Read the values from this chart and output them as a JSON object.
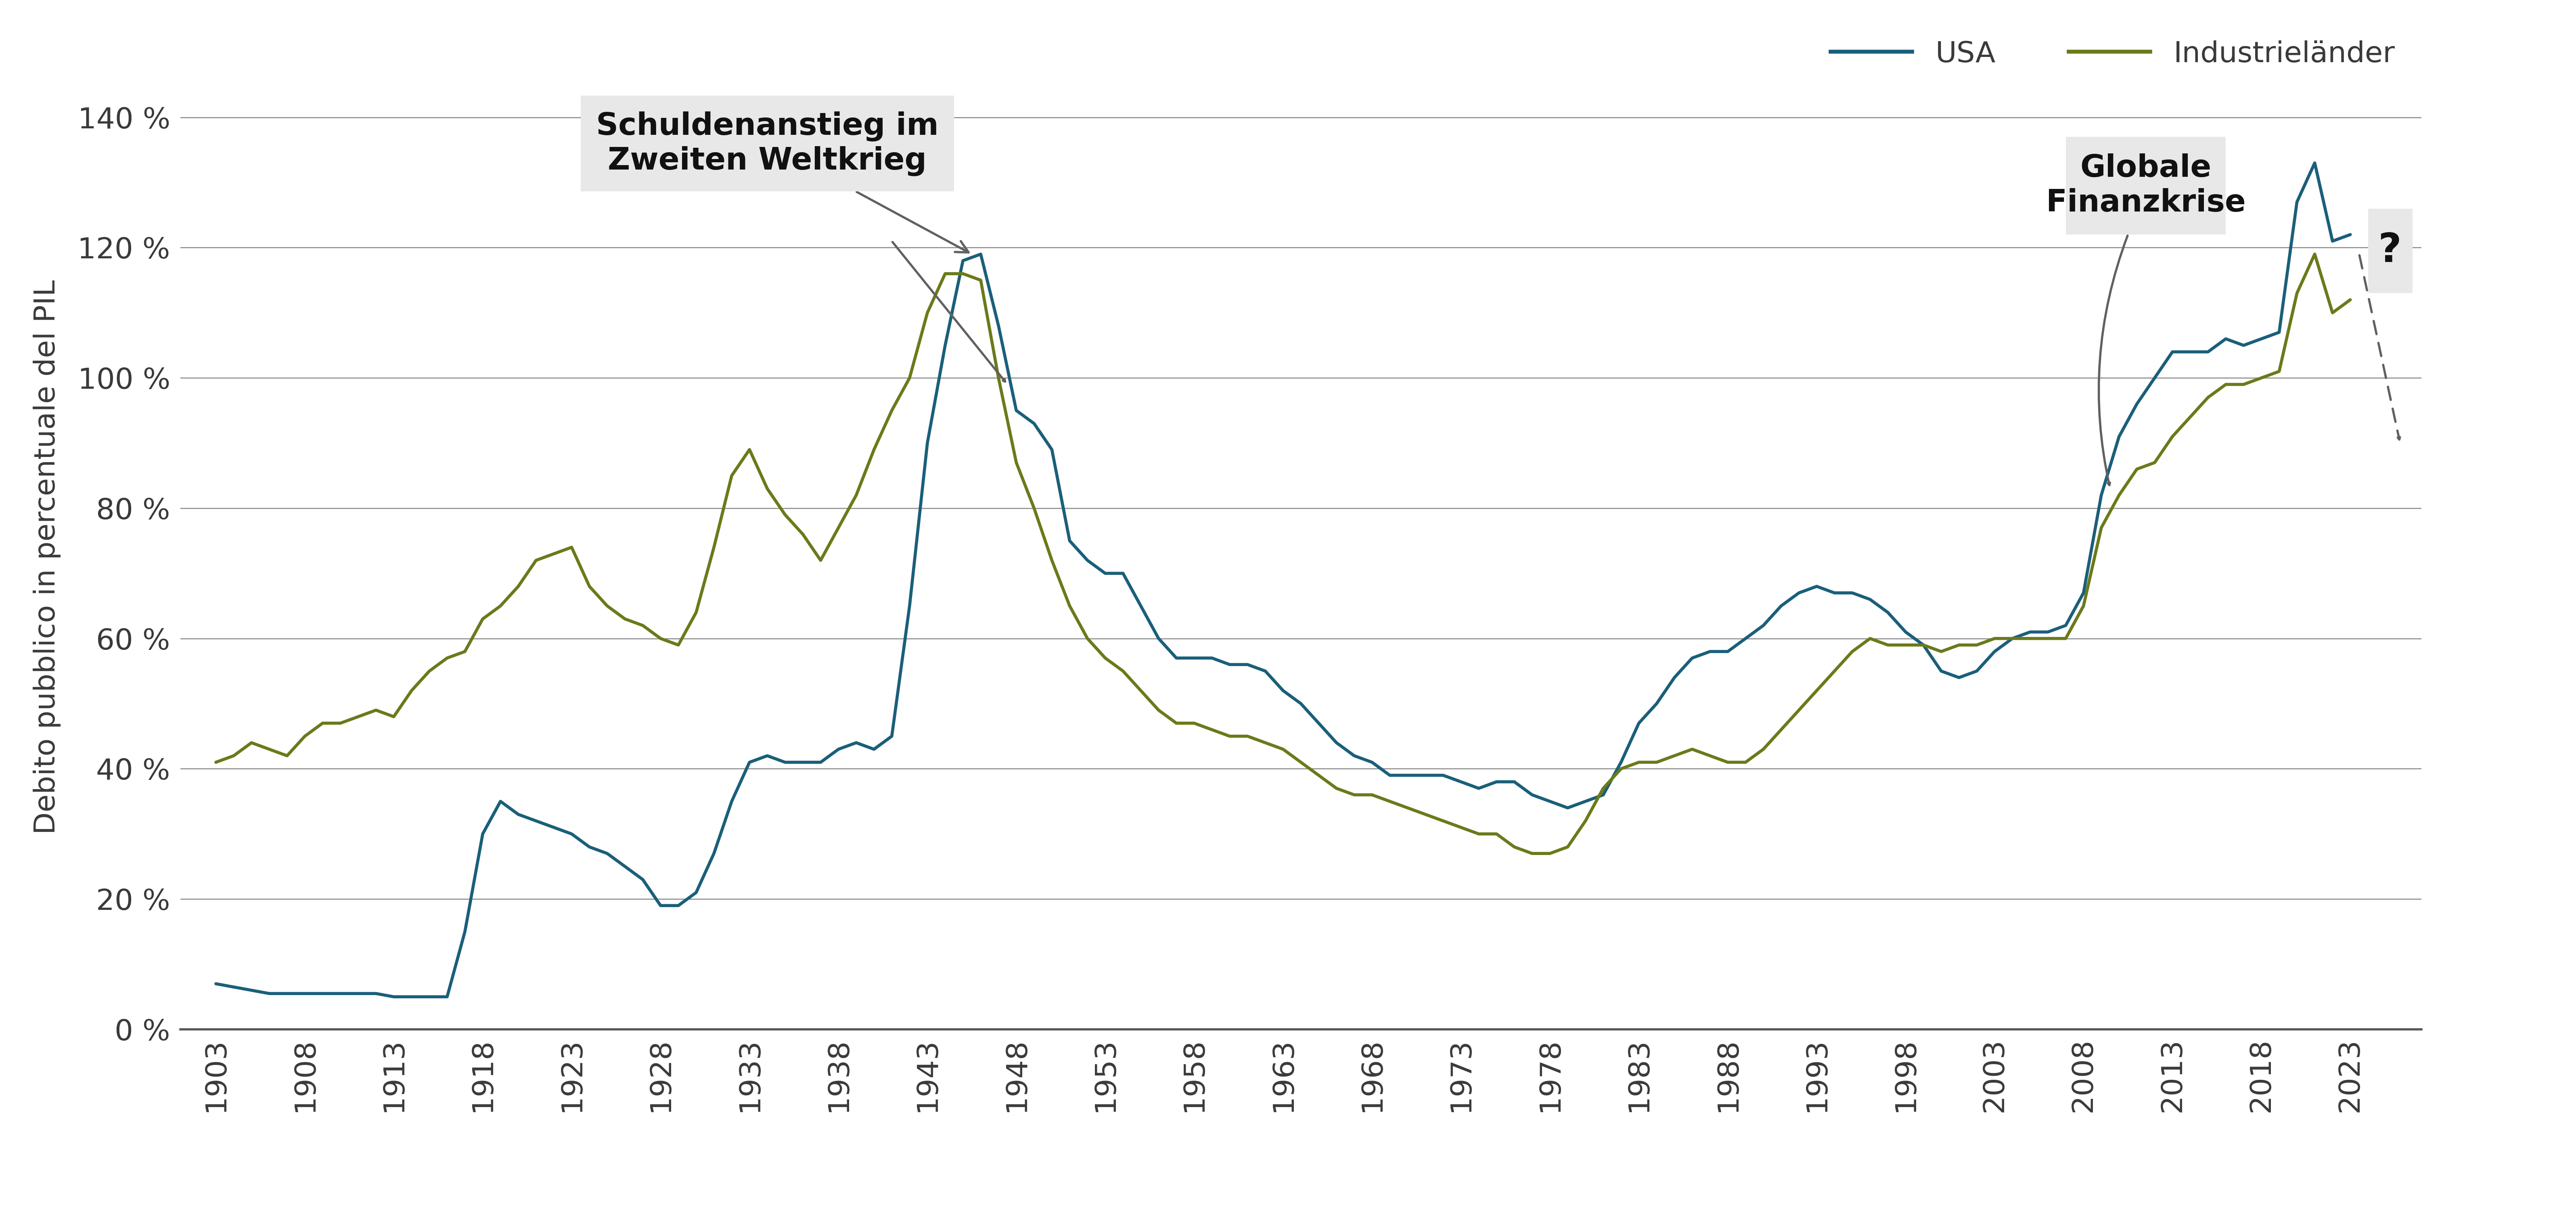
{
  "usa_data": {
    "1903": 7,
    "1904": 6.5,
    "1905": 6,
    "1906": 5.5,
    "1907": 5.5,
    "1908": 5.5,
    "1909": 5.5,
    "1910": 5.5,
    "1911": 5.5,
    "1912": 5.5,
    "1913": 5,
    "1914": 5,
    "1915": 5,
    "1916": 5,
    "1917": 15,
    "1918": 30,
    "1919": 35,
    "1920": 33,
    "1921": 32,
    "1922": 31,
    "1923": 30,
    "1924": 28,
    "1925": 27,
    "1926": 25,
    "1927": 23,
    "1928": 19,
    "1929": 19,
    "1930": 21,
    "1931": 27,
    "1932": 35,
    "1933": 41,
    "1934": 42,
    "1935": 41,
    "1936": 41,
    "1937": 41,
    "1938": 43,
    "1939": 44,
    "1940": 43,
    "1941": 45,
    "1942": 65,
    "1943": 90,
    "1944": 105,
    "1945": 118,
    "1946": 119,
    "1947": 108,
    "1948": 95,
    "1949": 93,
    "1950": 89,
    "1951": 75,
    "1952": 72,
    "1953": 70,
    "1954": 70,
    "1955": 65,
    "1956": 60,
    "1957": 57,
    "1958": 57,
    "1959": 57,
    "1960": 56,
    "1961": 56,
    "1962": 55,
    "1963": 52,
    "1964": 50,
    "1965": 47,
    "1966": 44,
    "1967": 42,
    "1968": 41,
    "1969": 39,
    "1970": 39,
    "1971": 39,
    "1972": 39,
    "1973": 38,
    "1974": 37,
    "1975": 38,
    "1976": 38,
    "1977": 36,
    "1978": 35,
    "1979": 34,
    "1980": 35,
    "1981": 36,
    "1982": 41,
    "1983": 47,
    "1984": 50,
    "1985": 54,
    "1986": 57,
    "1987": 58,
    "1988": 58,
    "1989": 60,
    "1990": 62,
    "1991": 65,
    "1992": 67,
    "1993": 68,
    "1994": 67,
    "1995": 67,
    "1996": 66,
    "1997": 64,
    "1998": 61,
    "1999": 59,
    "2000": 55,
    "2001": 54,
    "2002": 55,
    "2003": 58,
    "2004": 60,
    "2005": 61,
    "2006": 61,
    "2007": 62,
    "2008": 67,
    "2009": 82,
    "2010": 91,
    "2011": 96,
    "2012": 100,
    "2013": 104,
    "2014": 104,
    "2015": 104,
    "2016": 106,
    "2017": 105,
    "2018": 106,
    "2019": 107,
    "2020": 127,
    "2021": 133,
    "2022": 121,
    "2023": 122
  },
  "ind_data": {
    "1903": 41,
    "1904": 42,
    "1905": 44,
    "1906": 43,
    "1907": 42,
    "1908": 45,
    "1909": 47,
    "1910": 47,
    "1911": 48,
    "1912": 49,
    "1913": 48,
    "1914": 52,
    "1915": 55,
    "1916": 57,
    "1917": 58,
    "1918": 63,
    "1919": 65,
    "1920": 68,
    "1921": 72,
    "1922": 73,
    "1923": 74,
    "1924": 68,
    "1925": 65,
    "1926": 63,
    "1927": 62,
    "1928": 60,
    "1929": 59,
    "1930": 64,
    "1931": 74,
    "1932": 85,
    "1933": 89,
    "1934": 83,
    "1935": 79,
    "1936": 76,
    "1937": 72,
    "1938": 77,
    "1939": 82,
    "1940": 89,
    "1941": 95,
    "1942": 100,
    "1943": 110,
    "1944": 116,
    "1945": 116,
    "1946": 115,
    "1947": 100,
    "1948": 87,
    "1949": 80,
    "1950": 72,
    "1951": 65,
    "1952": 60,
    "1953": 57,
    "1954": 55,
    "1955": 52,
    "1956": 49,
    "1957": 47,
    "1958": 47,
    "1959": 46,
    "1960": 45,
    "1961": 45,
    "1962": 44,
    "1963": 43,
    "1964": 41,
    "1965": 39,
    "1966": 37,
    "1967": 36,
    "1968": 36,
    "1969": 35,
    "1970": 34,
    "1971": 33,
    "1972": 32,
    "1973": 31,
    "1974": 30,
    "1975": 30,
    "1976": 28,
    "1977": 27,
    "1978": 27,
    "1979": 28,
    "1980": 32,
    "1981": 37,
    "1982": 40,
    "1983": 41,
    "1984": 41,
    "1985": 42,
    "1986": 43,
    "1987": 42,
    "1988": 41,
    "1989": 41,
    "1990": 43,
    "1991": 46,
    "1992": 49,
    "1993": 52,
    "1994": 55,
    "1995": 58,
    "1996": 60,
    "1997": 59,
    "1998": 59,
    "1999": 59,
    "2000": 58,
    "2001": 59,
    "2002": 59,
    "2003": 60,
    "2004": 60,
    "2005": 60,
    "2006": 60,
    "2007": 60,
    "2008": 65,
    "2009": 77,
    "2010": 82,
    "2011": 86,
    "2012": 87,
    "2013": 91,
    "2014": 94,
    "2015": 97,
    "2016": 99,
    "2017": 99,
    "2018": 100,
    "2019": 101,
    "2020": 113,
    "2021": 119,
    "2022": 110,
    "2023": 112
  },
  "usa_color": "#1a5f7a",
  "ind_color": "#6b7a1a",
  "ylabel": "Debito pubblico in percentuale del PIL",
  "legend_usa": "USA",
  "legend_ind": "Industrieländer",
  "annotation1_text": "Schuldenanstieg im\nZweiten Weltkrieg",
  "annotation2_text": "Globale\nFinanzkrise",
  "question_mark": "?",
  "ylim": [
    0,
    145
  ],
  "yticks": [
    0,
    20,
    40,
    60,
    80,
    100,
    120,
    140
  ],
  "ytick_labels": [
    "0 %",
    "20 %",
    "40 %",
    "60 %",
    "80 %",
    "100 %",
    "120 %",
    "140 %"
  ],
  "xtick_start": 1903,
  "xtick_end": 2023,
  "xtick_step": 5,
  "background_color": "#ffffff",
  "grid_color": "#888888",
  "text_color": "#3a3a3a",
  "annotation_box_color": "#e8e8e8",
  "arrow_color": "#606060",
  "line_width": 5.5
}
